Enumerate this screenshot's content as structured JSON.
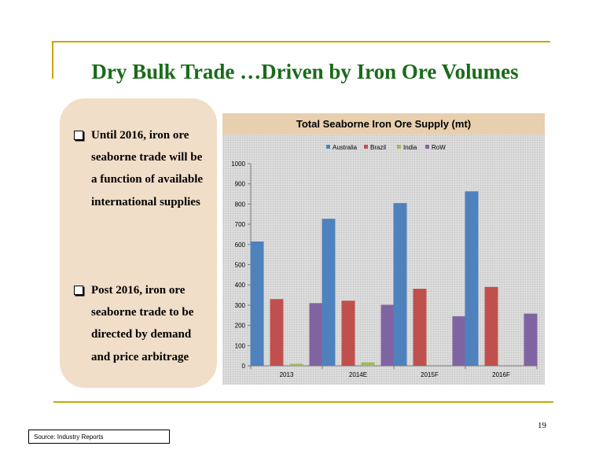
{
  "slide": {
    "title": "Dry Bulk Trade …Driven by Iron Ore Volumes",
    "bullets": [
      "Until 2016, iron ore seaborne trade will be a function of available international supplies",
      "Post 2016, iron ore seaborne trade to be directed by demand and price arbitrage"
    ],
    "page_number": "19",
    "source": "Source: Industry Reports"
  },
  "chart_data": {
    "type": "bar",
    "title": "Total Seaborne Iron Ore Supply (mt)",
    "categories": [
      "2013",
      "2014E",
      "2015F",
      "2016F"
    ],
    "series": [
      {
        "name": "Australia",
        "color": "#4f81bd",
        "values": [
          615,
          727,
          805,
          863
        ]
      },
      {
        "name": "Brazil",
        "color": "#c0504d",
        "values": [
          330,
          322,
          381,
          390
        ]
      },
      {
        "name": "India",
        "color": "#9bbb59",
        "values": [
          10,
          17,
          0,
          0
        ]
      },
      {
        "name": "RoW",
        "color": "#8064a2",
        "values": [
          310,
          302,
          245,
          258
        ]
      }
    ],
    "ylim": [
      0,
      1000
    ],
    "yticks": [
      0,
      100,
      200,
      300,
      400,
      500,
      600,
      700,
      800,
      900,
      1000
    ],
    "legend_position": "top",
    "grid": false
  }
}
